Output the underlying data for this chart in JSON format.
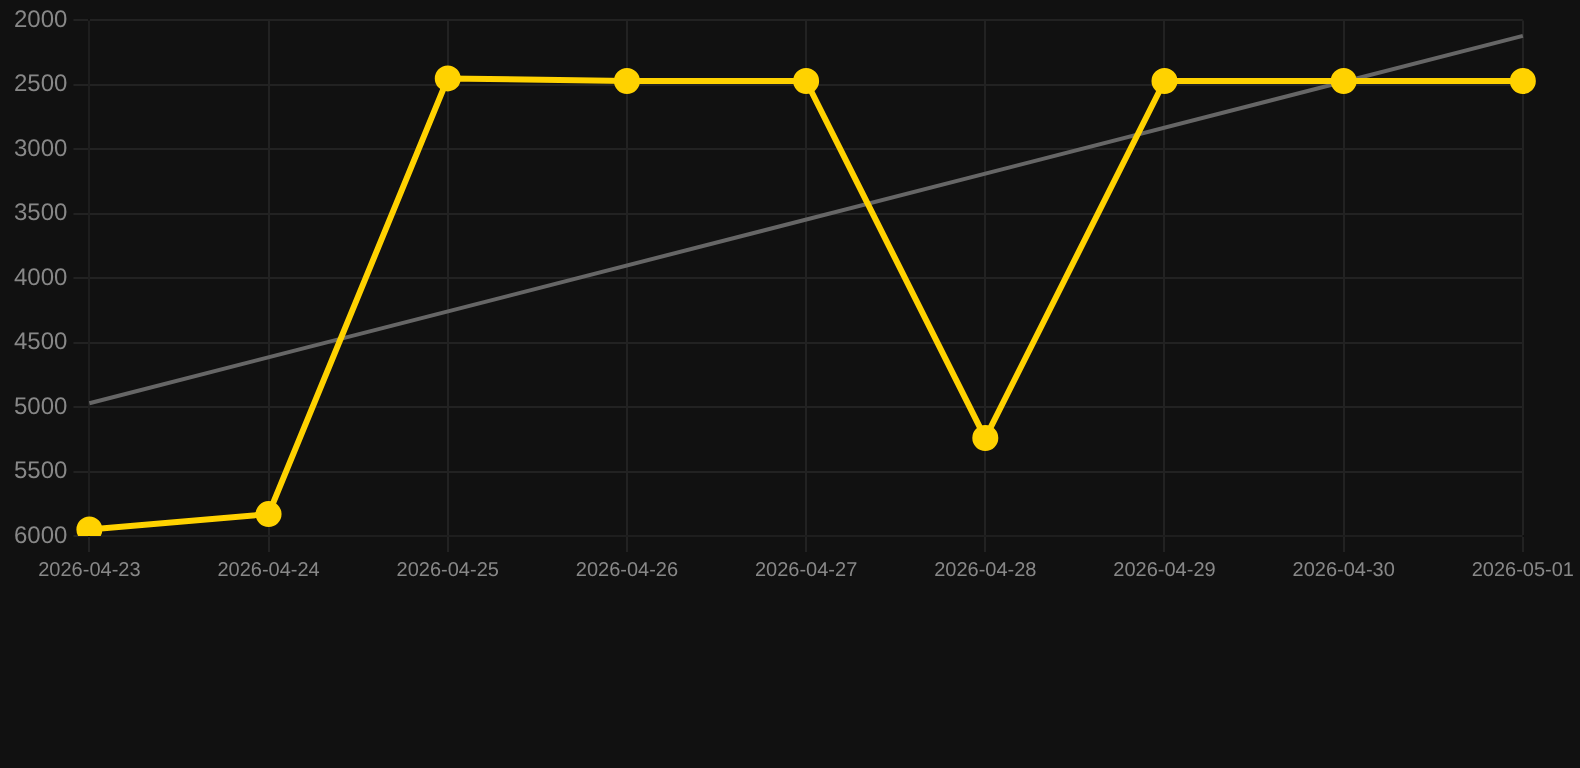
{
  "chart_data": {
    "type": "line",
    "categories": [
      "2026-04-23",
      "2026-04-24",
      "2026-04-25",
      "2026-04-26",
      "2026-04-27",
      "2026-04-28",
      "2026-04-29",
      "2026-04-30",
      "2026-05-01"
    ],
    "series": [
      {
        "color": "#ffd200",
        "values": [
          5950,
          5830,
          2450,
          2470,
          2470,
          5240,
          2470,
          2470,
          2470
        ],
        "marker": "circle"
      },
      {
        "type": "line",
        "color": "#666666",
        "values": [
          4970,
          null,
          null,
          null,
          null,
          null,
          null,
          null,
          2120
        ],
        "marker": "none"
      }
    ],
    "ylim": [
      6000,
      2000
    ],
    "yticks": [
      2000,
      2500,
      3000,
      3500,
      4000,
      4500,
      5000,
      5500,
      6000
    ],
    "grid": true,
    "legend": false
  }
}
